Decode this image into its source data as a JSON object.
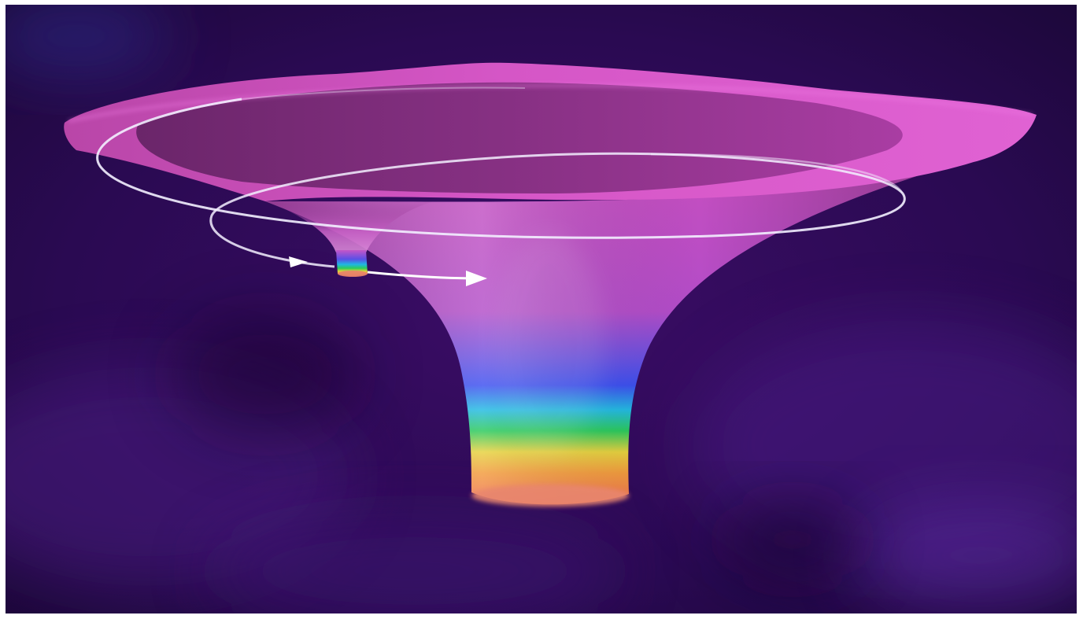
{
  "scene": {
    "subject": "",
    "colors": {
      "background_deep": "#1a0736",
      "background_mid": "#3b0d66",
      "nebula_highlight": "#5a2a9a",
      "surface_light": "#e55fd0",
      "surface_mid": "#c24bb3",
      "surface_dark": "#6a2366",
      "orbit_line": "#f3f0ff",
      "spectrum": [
        "#7a55e0",
        "#3a5cf0",
        "#1ec0e6",
        "#25cc57",
        "#e8d13a",
        "#f29a3a",
        "#ef6a50"
      ]
    },
    "elements": [
      "space-background",
      "large-funnel-well",
      "small-funnel-well",
      "large-orbit-ring",
      "small-orbit-ring",
      "orbit-arrow"
    ]
  }
}
